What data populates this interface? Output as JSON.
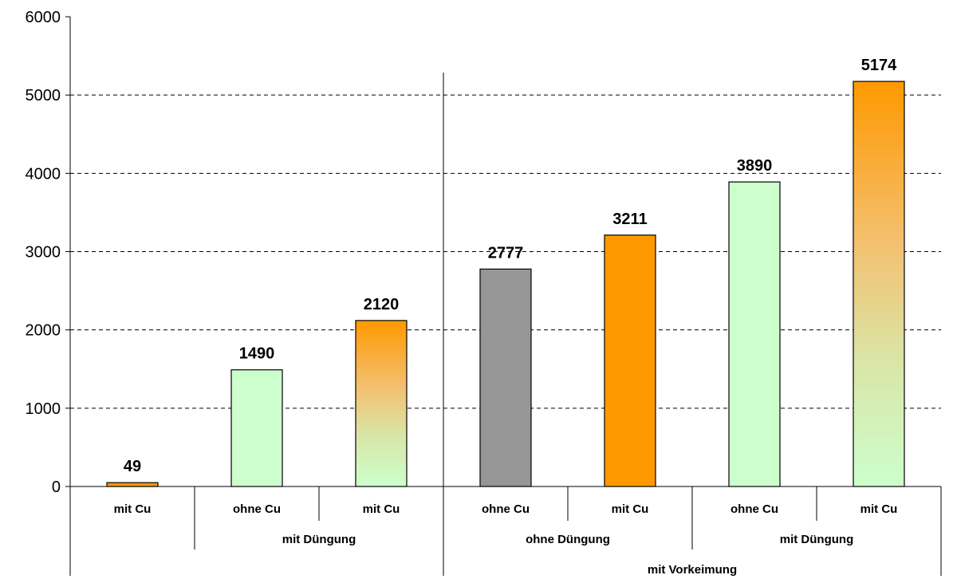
{
  "chart_data": {
    "type": "bar",
    "title": "",
    "xlabel": "",
    "ylabel": "",
    "ylim": [
      0,
      6000
    ],
    "yticks": [
      0,
      1000,
      2000,
      3000,
      4000,
      5000,
      6000
    ],
    "grid": "dashed horizontal",
    "legend": "none",
    "categories": [
      "mit Cu",
      "ohne Cu",
      "mit Cu",
      "ohne Cu",
      "mit Cu",
      "ohne Cu",
      "mit Cu"
    ],
    "values": [
      49,
      1490,
      2120,
      2777,
      3211,
      3890,
      5174
    ],
    "bar_styles": [
      "orange",
      "lightgreen",
      "gradient-green-orange",
      "gray",
      "orange",
      "lightgreen",
      "gradient-green-orange"
    ],
    "group_labels_level2": [
      {
        "label": "mit Düngung",
        "span": [
          1,
          2
        ]
      },
      {
        "label": "ohne Düngung",
        "span": [
          3,
          4
        ]
      },
      {
        "label": "mit Düngung",
        "span": [
          5,
          6
        ]
      }
    ],
    "group_labels_level3": [
      {
        "label": "mit Vorkeimung",
        "span": [
          3,
          6
        ]
      }
    ],
    "colors": {
      "orange": "#FF9900",
      "lightgreen": "#CCFFCC",
      "gray": "#969696",
      "gridline": "#000000"
    }
  }
}
